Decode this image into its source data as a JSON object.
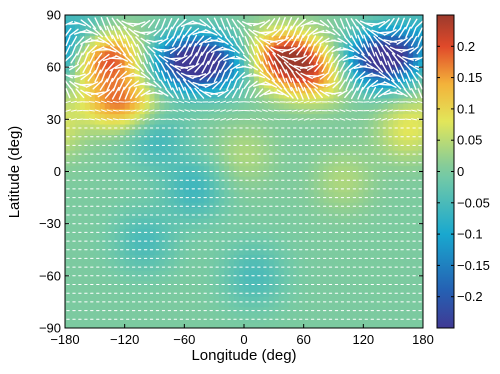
{
  "chart_data": {
    "type": "heatmap",
    "title": "",
    "xlabel": "Longitude (deg)",
    "ylabel": "Latitude (deg)",
    "xlim": [
      -180,
      180
    ],
    "ylim": [
      -90,
      90
    ],
    "xticks": [
      -180,
      -120,
      -60,
      0,
      60,
      120,
      180
    ],
    "yticks": [
      -90,
      -60,
      -30,
      0,
      30,
      60,
      90
    ],
    "xtick_labels": [
      "−180",
      "−120",
      "−60",
      "0",
      "60",
      "120",
      "180"
    ],
    "ytick_labels": [
      "−90",
      "−60",
      "−30",
      "0",
      "30",
      "60",
      "90"
    ],
    "colorbar": {
      "range": [
        -0.25,
        0.25
      ],
      "ticks": [
        0.2,
        0.15,
        0.1,
        0.05,
        0,
        -0.05,
        -0.1,
        -0.15,
        -0.2
      ],
      "tick_labels": [
        "0.2",
        "0.15",
        "0.1",
        "0.05",
        "0",
        "−0.05",
        "−0.1",
        "−0.15",
        "−0.2"
      ],
      "colormap": "jet-muted"
    },
    "features": [
      {
        "lon": -140,
        "lat": 66,
        "value": 0.22
      },
      {
        "lon": -125,
        "lat": 40,
        "value": 0.17
      },
      {
        "lon": -60,
        "lat": 63,
        "value": -0.2
      },
      {
        "lon": -30,
        "lat": 62,
        "value": -0.17
      },
      {
        "lon": 40,
        "lat": 66,
        "value": 0.22
      },
      {
        "lon": 70,
        "lat": 55,
        "value": 0.14
      },
      {
        "lon": 135,
        "lat": 63,
        "value": -0.22
      },
      {
        "lon": 160,
        "lat": 70,
        "value": -0.12
      },
      {
        "lon": -160,
        "lat": 78,
        "value": -0.08
      },
      {
        "lon": 165,
        "lat": 25,
        "value": 0.08
      },
      {
        "lon": -90,
        "lat": 20,
        "value": -0.06
      },
      {
        "lon": 100,
        "lat": -5,
        "value": 0.04
      },
      {
        "lon": -50,
        "lat": -10,
        "value": -0.06
      },
      {
        "lon": -100,
        "lat": -40,
        "value": -0.05
      },
      {
        "lon": 10,
        "lat": -60,
        "value": -0.05
      },
      {
        "lon": 0,
        "lat": 10,
        "value": 0.04
      }
    ],
    "vector_field": "wind arrows, strong in 45N–90N band, weak elsewhere"
  }
}
